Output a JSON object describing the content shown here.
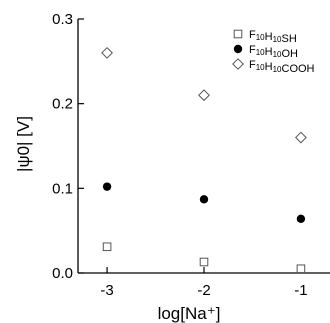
{
  "chart_data": {
    "type": "scatter",
    "xlabel": "log[Na⁺]",
    "ylabel": "|ψ0| [V]",
    "xlim": [
      -3.3,
      -0.7
    ],
    "ylim": [
      0.0,
      0.3
    ],
    "xticks": [
      -3,
      -2,
      -1
    ],
    "xtick_labels": [
      "-3",
      "-2",
      "-1"
    ],
    "yticks": [
      0.0,
      0.1,
      0.2,
      0.3
    ],
    "ytick_labels": [
      "0.0",
      "0.1",
      "0.2",
      "0.3"
    ],
    "grid": false,
    "legend_position": "top-right",
    "series": [
      {
        "name": "F10H10SH",
        "marker": "open-square",
        "x": [
          -3,
          -2,
          -1
        ],
        "y": [
          0.031,
          0.013,
          0.005
        ]
      },
      {
        "name": "F10H10OH",
        "marker": "filled-circle",
        "x": [
          -3,
          -2,
          -1
        ],
        "y": [
          0.102,
          0.087,
          0.064
        ]
      },
      {
        "name": "F10H10COOH",
        "marker": "open-diamond",
        "x": [
          -3,
          -2,
          -1
        ],
        "y": [
          0.26,
          0.21,
          0.16
        ]
      }
    ]
  }
}
